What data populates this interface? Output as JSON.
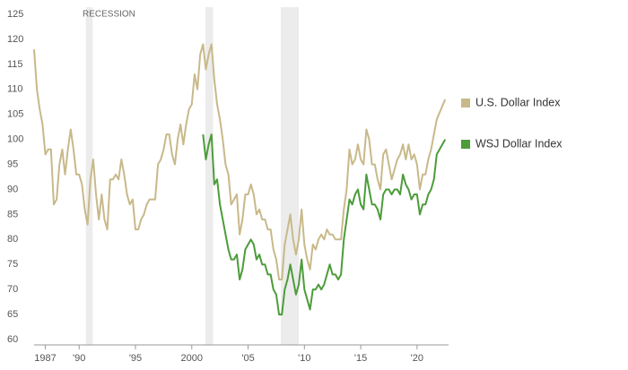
{
  "chart_data": {
    "type": "line",
    "annotation": "RECESSION",
    "recessions": [
      [
        1990.6,
        1991.2
      ],
      [
        2001.2,
        2001.9
      ],
      [
        2007.9,
        2009.5
      ]
    ],
    "xlim": [
      1986,
      2022.8
    ],
    "ylim": [
      60,
      125
    ],
    "yticks": [
      60,
      65,
      70,
      75,
      80,
      85,
      90,
      95,
      100,
      105,
      110,
      115,
      120,
      125
    ],
    "xticks": [
      {
        "value": 1987,
        "label": "1987"
      },
      {
        "value": 1990,
        "label": "'90"
      },
      {
        "value": 1995,
        "label": "'95"
      },
      {
        "value": 2000,
        "label": "2000"
      },
      {
        "value": 2005,
        "label": "'05"
      },
      {
        "value": 2010,
        "label": "'10"
      },
      {
        "value": 2015,
        "label": "'15"
      },
      {
        "value": 2020,
        "label": "'20"
      }
    ],
    "x": [
      1986,
      1986.25,
      1986.5,
      1986.75,
      1987,
      1987.25,
      1987.5,
      1987.75,
      1988,
      1988.25,
      1988.5,
      1988.75,
      1989,
      1989.25,
      1989.5,
      1989.75,
      1990,
      1990.25,
      1990.5,
      1990.75,
      1991,
      1991.25,
      1991.5,
      1991.75,
      1992,
      1992.25,
      1992.5,
      1992.75,
      1993,
      1993.25,
      1993.5,
      1993.75,
      1994,
      1994.25,
      1994.5,
      1994.75,
      1995,
      1995.25,
      1995.5,
      1995.75,
      1996,
      1996.25,
      1996.5,
      1996.75,
      1997,
      1997.25,
      1997.5,
      1997.75,
      1998,
      1998.25,
      1998.5,
      1998.75,
      1999,
      1999.25,
      1999.5,
      1999.75,
      2000,
      2000.25,
      2000.5,
      2000.75,
      2001,
      2001.25,
      2001.5,
      2001.75,
      2002,
      2002.25,
      2002.5,
      2002.75,
      2003,
      2003.25,
      2003.5,
      2003.75,
      2004,
      2004.25,
      2004.5,
      2004.75,
      2005,
      2005.25,
      2005.5,
      2005.75,
      2006,
      2006.25,
      2006.5,
      2006.75,
      2007,
      2007.25,
      2007.5,
      2007.75,
      2008,
      2008.25,
      2008.5,
      2008.75,
      2009,
      2009.25,
      2009.5,
      2009.75,
      2010,
      2010.25,
      2010.5,
      2010.75,
      2011,
      2011.25,
      2011.5,
      2011.75,
      2012,
      2012.25,
      2012.5,
      2012.75,
      2013,
      2013.25,
      2013.5,
      2013.75,
      2014,
      2014.25,
      2014.5,
      2014.75,
      2015,
      2015.25,
      2015.5,
      2015.75,
      2016,
      2016.25,
      2016.5,
      2016.75,
      2017,
      2017.25,
      2017.5,
      2017.75,
      2018,
      2018.25,
      2018.5,
      2018.75,
      2019,
      2019.25,
      2019.5,
      2019.75,
      2020,
      2020.25,
      2020.5,
      2020.75,
      2021,
      2021.25,
      2021.5,
      2021.75,
      2022.5
    ],
    "series": [
      {
        "name": "U.S. Dollar Index",
        "color": "#c8b98a",
        "values": [
          118,
          110,
          106,
          103,
          97,
          98,
          98,
          87,
          88,
          95,
          98,
          93,
          98,
          102,
          98,
          93,
          93,
          91,
          86,
          83,
          92,
          96,
          89,
          84,
          89,
          84,
          82,
          92,
          92,
          93,
          92,
          96,
          93,
          89,
          87,
          88,
          82,
          82,
          84,
          85,
          87,
          88,
          88,
          88,
          95,
          96,
          98,
          101,
          101,
          97,
          95,
          100,
          103,
          99,
          103,
          106,
          107,
          113,
          110,
          117,
          119,
          114,
          117,
          119,
          112,
          107,
          104,
          100,
          95,
          93,
          87,
          88,
          89,
          81,
          84,
          89,
          89,
          91,
          89,
          85,
          86,
          84,
          84,
          82,
          82,
          78,
          76,
          72,
          72,
          79,
          82,
          85,
          80,
          77,
          80,
          86,
          79,
          76,
          74,
          79,
          78,
          80,
          81,
          80,
          82,
          81,
          81,
          80,
          80,
          80,
          86,
          90,
          98,
          95,
          96,
          99,
          96,
          95,
          102,
          100,
          95,
          95,
          92,
          90,
          97,
          98,
          95,
          92,
          94,
          96,
          97,
          99,
          96,
          99,
          96,
          97,
          95,
          90,
          93,
          93,
          96,
          98,
          101,
          104,
          108
        ]
      },
      {
        "name": "WSJ Dollar Index",
        "color": "#4c9c3a",
        "values": [
          null,
          null,
          null,
          null,
          null,
          null,
          null,
          null,
          null,
          null,
          null,
          null,
          null,
          null,
          null,
          null,
          null,
          null,
          null,
          null,
          null,
          null,
          null,
          null,
          null,
          null,
          null,
          null,
          null,
          null,
          null,
          null,
          null,
          null,
          null,
          null,
          null,
          null,
          null,
          null,
          null,
          null,
          null,
          null,
          null,
          null,
          null,
          null,
          null,
          null,
          null,
          null,
          null,
          null,
          null,
          null,
          null,
          null,
          null,
          null,
          101,
          96,
          99,
          101,
          91,
          92,
          87,
          84,
          81,
          78,
          76,
          76,
          77,
          72,
          74,
          78,
          79,
          80,
          79,
          76,
          77,
          75,
          75,
          73,
          73,
          70,
          69,
          65,
          65,
          70,
          72,
          75,
          72,
          69,
          71,
          76,
          70,
          68,
          66,
          70,
          70,
          71,
          70,
          71,
          73,
          75,
          73,
          73,
          72,
          73,
          80,
          84,
          88,
          87,
          89,
          90,
          87,
          86,
          93,
          90,
          87,
          87,
          86,
          84,
          89,
          90,
          90,
          89,
          90,
          90,
          89,
          93,
          91,
          90,
          88,
          89,
          89,
          85,
          87,
          87,
          89,
          90,
          92,
          97,
          100
        ]
      }
    ]
  }
}
